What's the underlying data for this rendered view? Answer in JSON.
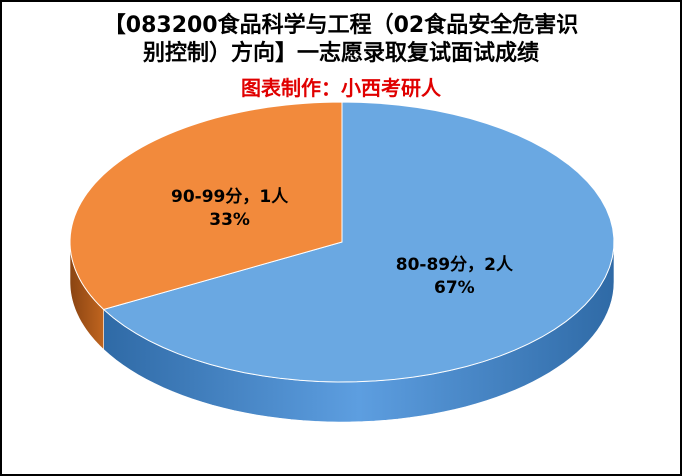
{
  "chart_data": {
    "type": "pie3d",
    "title": "【083200食品科学与工程（02食品安全危害识别控制）方向】一志愿录取复试面试成绩",
    "subtitle": "图表制作：小西考研人",
    "categories": [
      "80-89分，2人",
      "90-99分，1人"
    ],
    "values": [
      67,
      33
    ],
    "value_labels": [
      "67%",
      "33%"
    ],
    "colors": [
      "#6aa8e2",
      "#f28a3c"
    ]
  }
}
